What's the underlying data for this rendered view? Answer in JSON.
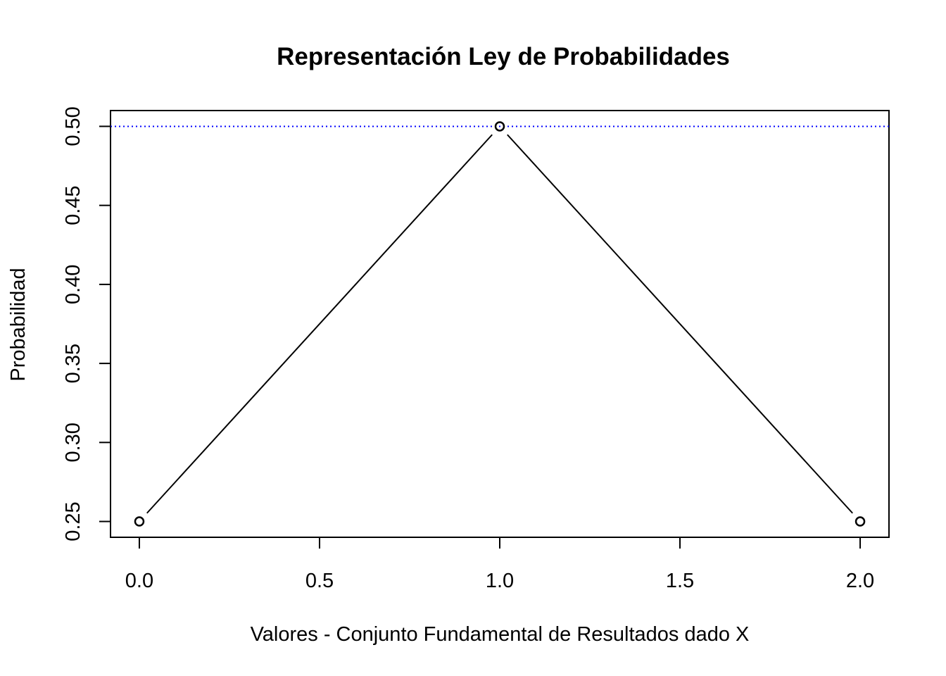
{
  "chart_data": {
    "type": "line",
    "title": "Representación Ley de Probabilidades",
    "xlabel": "Valores - Conjunto Fundamental de Resultados dado X",
    "ylabel": "Probabilidad",
    "x": [
      0,
      1,
      2
    ],
    "series": [
      {
        "values": [
          0.25,
          0.5,
          0.25
        ],
        "color": "#000000",
        "marker": "open-circle",
        "style": "line-with-points"
      }
    ],
    "reference_lines": [
      {
        "orientation": "horizontal",
        "y": 0.5,
        "color": "#0000ff",
        "style": "dotted"
      }
    ],
    "xlim": [
      -0.08,
      2.08
    ],
    "ylim": [
      0.24,
      0.51
    ],
    "xticks": [
      0.0,
      0.5,
      1.0,
      1.5,
      2.0
    ],
    "xtick_labels": [
      "0.0",
      "0.5",
      "1.0",
      "1.5",
      "2.0"
    ],
    "yticks": [
      0.25,
      0.3,
      0.35,
      0.4,
      0.45,
      0.5
    ],
    "ytick_labels": [
      "0.25",
      "0.30",
      "0.35",
      "0.40",
      "0.45",
      "0.50"
    ],
    "grid": false,
    "legend": "none"
  }
}
